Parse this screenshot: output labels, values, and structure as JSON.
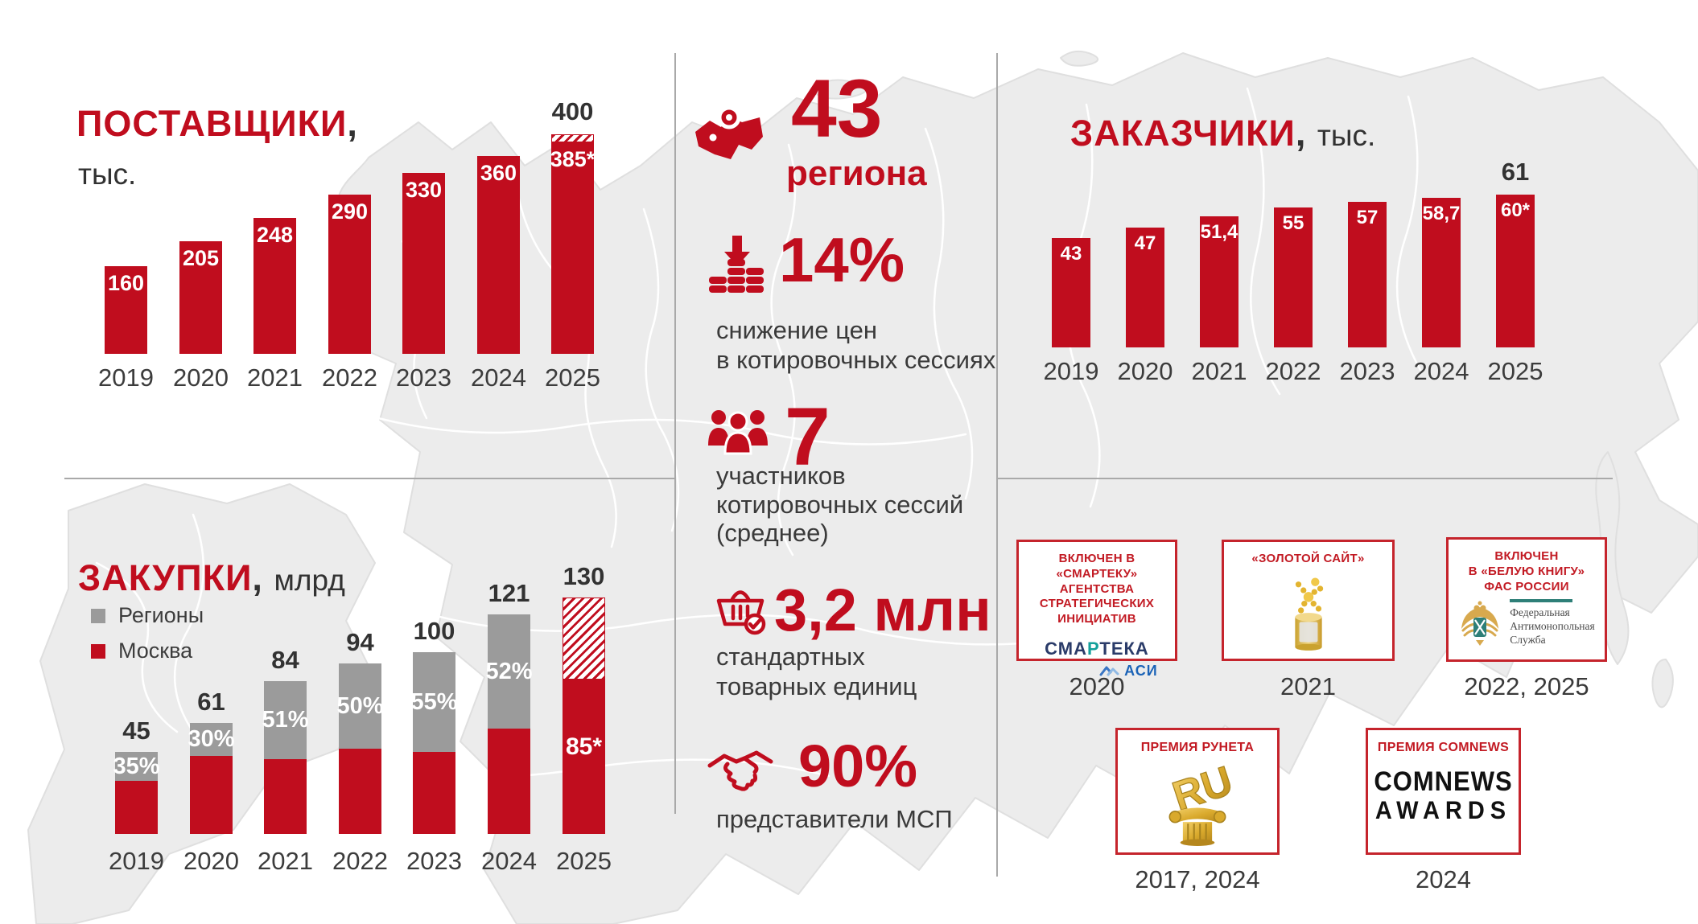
{
  "colors": {
    "red": "#c00d1e",
    "gray": "#9b9b9b",
    "dark": "#323232",
    "map_fill": "#ececec"
  },
  "chart_data": [
    {
      "id": "suppliers",
      "type": "bar",
      "title": "ПОСТАВЩИКИ",
      "title_suffix": ",",
      "subtitle": "тыс.",
      "categories": [
        "2019",
        "2020",
        "2021",
        "2022",
        "2023",
        "2024",
        "2025"
      ],
      "values": [
        160,
        205,
        248,
        290,
        330,
        360,
        385
      ],
      "ylim": [
        0,
        400
      ],
      "grid": false,
      "legend_position": "none",
      "bars": [
        {
          "year": "2019",
          "value": 160,
          "label": "160"
        },
        {
          "year": "2020",
          "value": 205,
          "label": "205"
        },
        {
          "year": "2021",
          "value": 248,
          "label": "248"
        },
        {
          "year": "2022",
          "value": 290,
          "label": "290"
        },
        {
          "year": "2023",
          "value": 330,
          "label": "330"
        },
        {
          "year": "2024",
          "value": 360,
          "label": "360"
        },
        {
          "year": "2025",
          "value": 385,
          "label": "385*",
          "hatch_to": 400,
          "above_label": "400"
        }
      ]
    },
    {
      "id": "customers",
      "type": "bar",
      "title": "ЗАКАЗЧИКИ",
      "title_suffix": ", ",
      "subtitle": "тыс.",
      "categories": [
        "2019",
        "2020",
        "2021",
        "2022",
        "2023",
        "2024",
        "2025"
      ],
      "values": [
        43,
        47,
        51.4,
        55,
        57,
        58.7,
        60
      ],
      "ylim": [
        0,
        61
      ],
      "grid": false,
      "legend_position": "none",
      "bars": [
        {
          "year": "2019",
          "value": 43,
          "label": "43"
        },
        {
          "year": "2020",
          "value": 47,
          "label": "47"
        },
        {
          "year": "2021",
          "value": 51.4,
          "label": "51,4"
        },
        {
          "year": "2022",
          "value": 55,
          "label": "55"
        },
        {
          "year": "2023",
          "value": 57,
          "label": "57"
        },
        {
          "year": "2024",
          "value": 58.7,
          "label": "58,7"
        },
        {
          "year": "2025",
          "value": 60,
          "label": "60*",
          "above_label": "61",
          "above_value": 61
        }
      ]
    },
    {
      "id": "purchases",
      "type": "stacked-bar",
      "title": "ЗАКУПКИ",
      "title_suffix": ", ",
      "subtitle": "млрд",
      "legend": [
        {
          "label": "Регионы",
          "color": "#9b9b9b"
        },
        {
          "label": "Москва",
          "color": "#c00d1e"
        }
      ],
      "legend_position": "top-left",
      "categories": [
        "2019",
        "2020",
        "2021",
        "2022",
        "2023",
        "2024",
        "2025"
      ],
      "totals": [
        45,
        61,
        84,
        94,
        100,
        121,
        130
      ],
      "regions_share_pct": [
        35,
        30,
        51,
        50,
        55,
        52,
        null
      ],
      "grid": false,
      "bars": [
        {
          "year": "2019",
          "total": 45,
          "total_label": "45",
          "regions_pct": 35,
          "pct_label": "35%"
        },
        {
          "year": "2020",
          "total": 61,
          "total_label": "61",
          "regions_pct": 30,
          "pct_label": "30%"
        },
        {
          "year": "2021",
          "total": 84,
          "total_label": "84",
          "regions_pct": 51,
          "pct_label": "51%"
        },
        {
          "year": "2022",
          "total": 94,
          "total_label": "94",
          "regions_pct": 50,
          "pct_label": "50%"
        },
        {
          "year": "2023",
          "total": 100,
          "total_label": "100",
          "regions_pct": 55,
          "pct_label": "55%"
        },
        {
          "year": "2024",
          "total": 121,
          "total_label": "121",
          "regions_pct": 52,
          "pct_label": "52%"
        },
        {
          "year": "2025",
          "total": 130,
          "total_label": "130",
          "regions_pct": null,
          "moscow_value": 85,
          "moscow_label": "85*",
          "projected": true
        }
      ]
    }
  ],
  "stats": [
    {
      "icon": "region-pin-icon",
      "value": "43",
      "label_lines": [
        "региона"
      ]
    },
    {
      "icon": "price-decrease-icon",
      "value": "14%",
      "label_lines": [
        "снижение цен",
        "в котировочных сессиях"
      ]
    },
    {
      "icon": "participants-icon",
      "value": "7",
      "label_lines": [
        "участников",
        "котировочных сессий",
        "(среднее)"
      ]
    },
    {
      "icon": "basket-check-icon",
      "value": "3,2 млн",
      "label_lines": [
        "стандартных",
        "товарных единиц"
      ]
    },
    {
      "icon": "handshake-icon",
      "value": "90%",
      "label_lines": [
        "представители МСП"
      ]
    }
  ],
  "awards": [
    {
      "title_lines": [
        "ВКЛЮЧЕН В «СМАРТЕКУ»",
        "АГЕНТСТВА",
        "СТРАТЕГИЧЕСКИХ",
        "ИНИЦИАТИВ"
      ],
      "years": "2020",
      "logo_parts": [
        "СМА",
        "Р",
        "ТЕКА"
      ],
      "logo_text2": "АСИ"
    },
    {
      "title_lines": [
        "«ЗОЛОТОЙ САЙТ»"
      ],
      "years": "2021"
    },
    {
      "title_lines": [
        "ВКЛЮЧЕН",
        "В «БЕЛУЮ КНИГУ»",
        "ФАС РОССИИ"
      ],
      "years": "2022, 2025",
      "logo_text_lines": [
        "Федеральная",
        "Антимонопольная",
        "Служба"
      ]
    },
    {
      "title_lines": [
        "ПРЕМИЯ РУНЕТА"
      ],
      "years": "2017, 2024",
      "logo_text": "RU"
    },
    {
      "title_lines": [
        "ПРЕМИЯ COMNEWS"
      ],
      "years": "2024",
      "logo_text_lines": [
        "COMNEWS",
        "AWARDS"
      ]
    }
  ]
}
